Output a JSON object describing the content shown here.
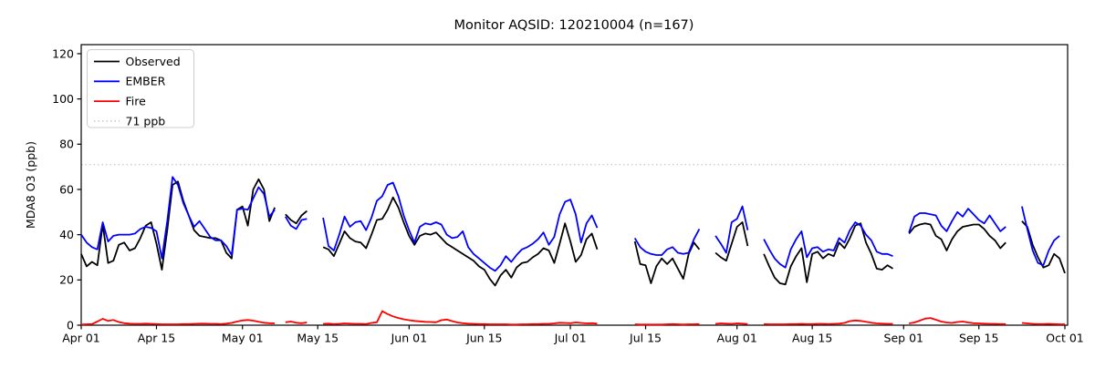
{
  "chart_data": {
    "type": "line",
    "title": "Monitor AQSID: 120210004 (n=167)",
    "ylabel": "MDA8 O3 (ppb)",
    "xlabel": "",
    "n_points": 167,
    "grid": false,
    "legend_position": "upper left",
    "ylim": [
      0,
      124
    ],
    "xlim": [
      0,
      183
    ],
    "y_ticks": [
      0,
      20,
      40,
      60,
      80,
      100,
      120
    ],
    "x_ticks": [
      {
        "label": "Apr 01",
        "day": 0
      },
      {
        "label": "Apr 15",
        "day": 14
      },
      {
        "label": "May 01",
        "day": 30
      },
      {
        "label": "May 15",
        "day": 44
      },
      {
        "label": "Jun 01",
        "day": 61
      },
      {
        "label": "Jun 15",
        "day": 75
      },
      {
        "label": "Jul 01",
        "day": 91
      },
      {
        "label": "Jul 15",
        "day": 105
      },
      {
        "label": "Aug 01",
        "day": 122
      },
      {
        "label": "Aug 15",
        "day": 136
      },
      {
        "label": "Sep 01",
        "day": 153
      },
      {
        "label": "Sep 15",
        "day": 167
      },
      {
        "label": "Oct 01",
        "day": 183
      }
    ],
    "x_unit": "days since Apr 01",
    "ref_line": {
      "label": "71 ppb",
      "value": 71,
      "color": "#cdcdcd",
      "style": "dotted"
    },
    "series": [
      {
        "name": "Observed",
        "color": "#000000",
        "values": [
          31.5,
          26,
          28,
          26.5,
          44.5,
          27.5,
          28.5,
          35.5,
          36.5,
          33,
          34,
          38.5,
          44,
          45.5,
          36,
          24.5,
          42,
          62,
          63.5,
          55,
          48.5,
          42,
          39.5,
          39,
          38.5,
          38.5,
          37.5,
          32,
          29.5,
          51,
          52.5,
          44,
          60,
          64.5,
          60,
          46,
          52,
          null,
          49,
          46.5,
          45,
          48.5,
          50.5,
          null,
          null,
          34.5,
          33.5,
          30.5,
          36,
          41.5,
          38.5,
          37,
          36.5,
          34,
          40,
          46.5,
          47,
          51,
          56.5,
          52,
          45.5,
          39.5,
          35.5,
          39.5,
          40.5,
          40,
          41,
          38.5,
          36,
          34.5,
          33,
          31.5,
          30,
          28.5,
          26,
          24.5,
          20.5,
          17.5,
          22,
          24.5,
          21,
          25.5,
          27.5,
          28,
          30,
          31.5,
          34,
          33,
          27.5,
          36,
          45,
          37,
          28,
          31,
          38,
          40.5,
          33.5,
          null,
          null,
          null,
          null,
          null,
          null,
          37,
          27,
          26.5,
          18.5,
          26,
          29.5,
          27,
          29.5,
          25,
          20.5,
          31.5,
          36.5,
          33.5,
          null,
          null,
          32,
          30,
          28.5,
          36,
          43.5,
          45.5,
          35,
          null,
          null,
          31.5,
          26,
          21,
          18.5,
          18,
          26,
          30.5,
          34,
          19,
          31.5,
          32.5,
          29.5,
          31.5,
          30.5,
          36.5,
          34,
          38.5,
          44,
          45,
          36.5,
          31.5,
          25,
          24.5,
          26.5,
          25,
          null,
          null,
          40.5,
          43.5,
          44.5,
          45,
          44.5,
          39.5,
          38,
          33,
          38,
          41.5,
          43.5,
          44,
          44.5,
          44.5,
          42.5,
          39.5,
          37.5,
          34,
          36.5,
          null,
          null,
          46,
          43.5,
          35.5,
          30,
          25.5,
          26.5,
          31.5,
          29.5,
          23
        ]
      },
      {
        "name": "EMBER",
        "color": "#0000ff",
        "values": [
          40,
          36.5,
          34.5,
          33.5,
          45.5,
          37,
          39.5,
          40,
          40,
          40,
          40.5,
          42.5,
          43.5,
          43,
          41.5,
          29.5,
          46,
          65.5,
          62,
          54,
          48.5,
          43.5,
          46,
          42.5,
          39,
          37.5,
          37.5,
          35,
          31,
          51,
          51.5,
          51,
          56,
          61,
          58,
          48,
          51,
          null,
          48,
          44,
          42.5,
          46.5,
          47,
          null,
          null,
          47.5,
          35,
          33,
          40,
          48,
          43.5,
          45.5,
          46,
          42,
          47.5,
          55,
          57,
          62,
          63,
          57,
          48.5,
          42,
          36.5,
          43.5,
          45,
          44.5,
          45.5,
          44.5,
          40,
          38.5,
          39,
          41.5,
          34.5,
          31.5,
          29.5,
          27.5,
          25.5,
          24,
          26.5,
          30.5,
          28,
          31,
          33.5,
          34.5,
          36,
          38,
          41,
          35.5,
          39,
          49,
          54.5,
          55.5,
          49,
          36.5,
          45,
          48.5,
          43,
          null,
          null,
          null,
          null,
          null,
          null,
          38.5,
          34.5,
          32.5,
          31.5,
          31,
          31,
          33.5,
          34.5,
          32,
          31.5,
          32,
          38,
          42.5,
          null,
          null,
          39.5,
          36,
          32,
          45.5,
          47,
          52.5,
          42,
          null,
          null,
          38,
          33.5,
          29.5,
          27,
          25.5,
          33.5,
          38,
          41.5,
          30,
          34,
          34.5,
          32.5,
          33.5,
          33,
          38.5,
          36.5,
          42,
          45.5,
          44,
          40,
          37.5,
          32.5,
          31.5,
          31.5,
          30.5,
          null,
          null,
          41,
          48,
          49.5,
          49.5,
          49,
          48.5,
          44,
          41.5,
          46,
          50,
          48,
          51.5,
          49,
          46.5,
          45,
          48.5,
          45,
          41.5,
          43.5,
          null,
          null,
          52.5,
          42.5,
          33,
          27.5,
          26.5,
          33,
          37.5,
          39.5,
          null
        ]
      },
      {
        "name": "Fire",
        "color": "#ff0000",
        "values": [
          0.3,
          0.4,
          0.5,
          1.6,
          2.8,
          1.9,
          2.3,
          1.4,
          0.9,
          0.7,
          0.6,
          0.6,
          0.7,
          0.6,
          0.5,
          0.4,
          0.4,
          0.4,
          0.4,
          0.5,
          0.5,
          0.6,
          0.7,
          0.7,
          0.6,
          0.6,
          0.5,
          0.7,
          1.0,
          1.6,
          2.1,
          2.3,
          2.0,
          1.5,
          1.1,
          0.9,
          0.8,
          null,
          1.3,
          1.6,
          1.1,
          0.9,
          1.2,
          null,
          null,
          0.6,
          0.7,
          0.5,
          0.6,
          0.8,
          0.7,
          0.6,
          0.6,
          0.5,
          1.0,
          1.3,
          6.2,
          4.9,
          3.9,
          3.2,
          2.6,
          2.2,
          1.9,
          1.7,
          1.5,
          1.4,
          1.3,
          2.2,
          2.5,
          1.8,
          1.2,
          0.9,
          0.7,
          0.6,
          0.5,
          0.5,
          0.4,
          0.4,
          0.4,
          0.4,
          0.3,
          0.3,
          0.4,
          0.4,
          0.5,
          0.5,
          0.6,
          0.6,
          0.8,
          1.1,
          1.0,
          0.9,
          1.2,
          1.0,
          0.8,
          0.9,
          0.7,
          null,
          null,
          null,
          null,
          null,
          null,
          0.4,
          0.3,
          0.3,
          0.3,
          0.3,
          0.3,
          0.4,
          0.5,
          0.4,
          0.3,
          0.4,
          0.4,
          0.5,
          null,
          null,
          0.6,
          0.8,
          0.7,
          0.6,
          0.8,
          0.7,
          0.5,
          null,
          null,
          0.5,
          0.4,
          0.4,
          0.4,
          0.4,
          0.5,
          0.5,
          0.6,
          0.5,
          0.5,
          0.6,
          0.6,
          0.5,
          0.6,
          0.7,
          1.0,
          1.8,
          2.1,
          1.9,
          1.5,
          1.1,
          0.8,
          0.7,
          0.6,
          0.6,
          null,
          null,
          0.8,
          1.2,
          2.0,
          2.9,
          3.2,
          2.4,
          1.6,
          1.2,
          1.0,
          1.4,
          1.6,
          1.2,
          0.9,
          0.8,
          0.7,
          0.6,
          0.6,
          0.5,
          0.5,
          null,
          null,
          1.0,
          0.8,
          0.6,
          0.5,
          0.5,
          0.6,
          0.5,
          0.4,
          0.4
        ]
      }
    ]
  }
}
